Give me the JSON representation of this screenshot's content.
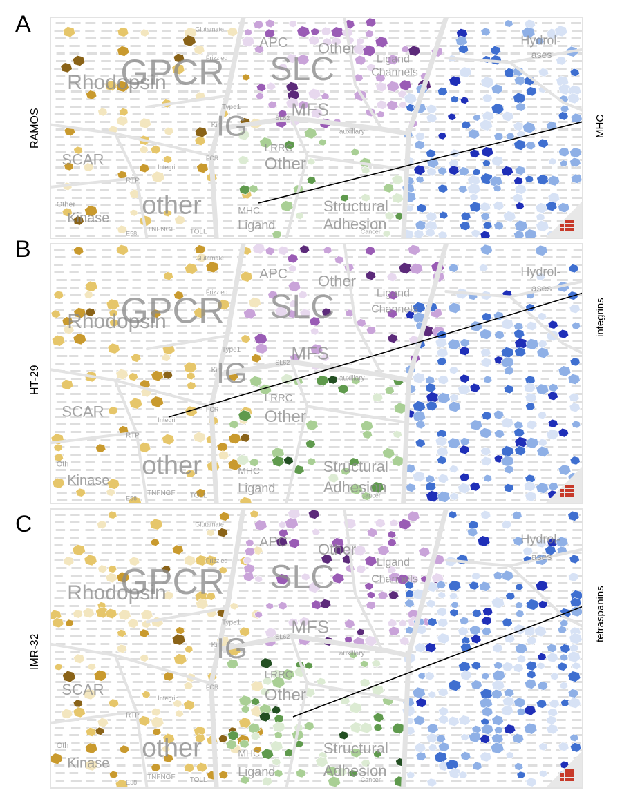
{
  "panels": [
    {
      "letter": "A",
      "cell_line": "RAMOS",
      "callout": "MHC",
      "labels": {
        "glutamate": "Glutamate",
        "frizzled": "Frizzled",
        "gpcr": "GPCR",
        "rhodopsin": "Rhodopsin",
        "apc": "APC",
        "slc": "SLC",
        "other_slc": "Other",
        "mfs": "MFS",
        "sl62": "SL62",
        "ligand_channels_1": "Ligand",
        "ligand_channels_2": "Channels",
        "auxiliary": "auxillary",
        "hydro_1": "Hydrol-",
        "hydro_2": "ases",
        "ig": "IG",
        "kir": "Kir",
        "type1": "Type1",
        "fcr": "FCR",
        "integrin": "Integrin",
        "scar": "SCAR",
        "rtp": "RTP",
        "other_kinase": "Other",
        "kinase": "Kinase",
        "other": "other",
        "tnfngf": "TNFNGF",
        "toll": "TOLL",
        "lrrc": "LRRC",
        "other_lrrc": "Other",
        "mhc_1": "MHC",
        "mhc_2": "Ligand",
        "structural": "Structural",
        "adhesion": "Adhesion",
        "e58": "E58",
        "cancer": "Cancer"
      }
    },
    {
      "letter": "B",
      "cell_line": "HT-29",
      "callout": "integrins",
      "labels": {
        "glutamate": "Glutamate",
        "frizzled": "Frizzled",
        "gpcr": "GPCR",
        "rhodopsin": "Rhodopsin",
        "apc": "APC",
        "slc": "SLC",
        "other_slc": "Other",
        "mfs": "MFS",
        "sl62": "SL62",
        "ligand_channels_1": "Ligand",
        "ligand_channels_2": "Channels",
        "auxiliary": "auxillary",
        "hydro_1": "Hydrol-",
        "hydro_2": "ases",
        "ig": "IG",
        "kir": "Kir",
        "type1": "Type1",
        "fcr": "FCR",
        "integrin": "Integrin",
        "scar": "SCAR",
        "rtp": "RTP",
        "other_kinase": "Oth",
        "kinase": "Kinase",
        "other": "other",
        "tnfngf": "TNFNGF",
        "toll": "TOLL",
        "lrrc": "LRRC",
        "other_lrrc": "Other",
        "mhc_1": "MHC",
        "mhc_2": "Ligand",
        "structural": "Structural",
        "adhesion": "Adhesion",
        "e58": "E58",
        "cancer": "Cancer"
      }
    },
    {
      "letter": "C",
      "cell_line": "IMR-32",
      "callout": "tetraspanins",
      "labels": {
        "glutamate": "Glutamate",
        "frizzled": "Frizzled",
        "gpcr": "GPCR",
        "rhodopsin": "Rhodopsin",
        "apc": "APC",
        "slc": "SLC",
        "other_slc": "Other",
        "mfs": "MFS",
        "sl62": "SL62",
        "ligand_channels_1": "Ligand",
        "ligand_channels_2": "Channels",
        "auxiliary": "auxillary",
        "hydro_1": "Hydrol-",
        "hydro_2": "ases",
        "ig": "IG",
        "kir": "Kir",
        "type1": "Type1",
        "fcr": "FCR",
        "integrin": "Integrin",
        "scar": "SCAR",
        "rtp": "RTP",
        "other_kinase": "Oth",
        "kinase": "Kinase",
        "other": "other",
        "tnfngf": "TNFNGF",
        "toll": "TOLL",
        "lrrc": "LRRC",
        "other_lrrc": "Other",
        "mhc_1": "MHC",
        "mhc_2": "Ligand",
        "structural": "Structural",
        "adhesion": "Adhesion",
        "e58": "E58",
        "cancer": "Cancer"
      }
    }
  ],
  "colors": {
    "gold": [
      "#f3e6bf",
      "#e6c66a",
      "#c99a2e",
      "#8a6318"
    ],
    "purple": [
      "#e7d8ee",
      "#c9a3d9",
      "#9a5cb5",
      "#5c2a7a"
    ],
    "green": [
      "#dcebd3",
      "#a9cf95",
      "#5f9a4d",
      "#234f22"
    ],
    "blue": [
      "#d7e2f5",
      "#8fb0e6",
      "#3f6fd0",
      "#1f2fb8"
    ],
    "border": "#e3e3e3"
  }
}
